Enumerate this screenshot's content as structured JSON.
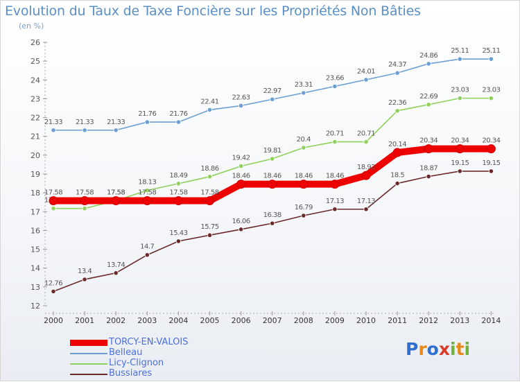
{
  "header": {
    "title": "Evolution du Taux de Taxe Foncière sur les Propriétés Non Bâties",
    "subtitle": "(en %)"
  },
  "logo": {
    "text": "Proxiti"
  },
  "chart_data": {
    "type": "line",
    "title": "Evolution du Taux de Taxe Foncière sur les Propriétés Non Bâties",
    "subtitle": "(en %)",
    "xlabel": "",
    "ylabel": "",
    "ylim": [
      12,
      26
    ],
    "y_ticks": [
      12,
      13,
      14,
      15,
      16,
      17,
      18,
      19,
      20,
      21,
      22,
      23,
      24,
      25,
      26
    ],
    "categories": [
      "2000",
      "2001",
      "2002",
      "2003",
      "2004",
      "2005",
      "2006",
      "2007",
      "2008",
      "2009",
      "2010",
      "2011",
      "2012",
      "2013",
      "2014"
    ],
    "grid": false,
    "legend_position": "bottom-left",
    "series": [
      {
        "name": "TORCY-EN-VALOIS",
        "color": "#ee0000",
        "emphasis": true,
        "values": [
          17.58,
          17.58,
          17.58,
          17.58,
          17.58,
          17.58,
          18.46,
          18.46,
          18.46,
          18.46,
          18.92,
          20.14,
          20.34,
          20.34,
          20.34
        ]
      },
      {
        "name": "Belleau",
        "color": "#6b9fd4",
        "values": [
          21.33,
          21.33,
          21.33,
          21.76,
          21.76,
          22.41,
          22.63,
          22.97,
          23.31,
          23.66,
          24.01,
          24.37,
          24.86,
          25.11,
          25.11
        ]
      },
      {
        "name": "Licy-Clignon",
        "color": "#8fd15a",
        "values": [
          17.17,
          17.17,
          17.58,
          18.13,
          18.49,
          18.86,
          19.42,
          19.81,
          20.4,
          20.71,
          20.71,
          22.36,
          22.69,
          23.03,
          23.03
        ]
      },
      {
        "name": "Bussiares",
        "color": "#6b2a2a",
        "values": [
          12.76,
          13.4,
          13.74,
          14.7,
          15.43,
          15.75,
          16.06,
          16.38,
          16.79,
          17.13,
          17.13,
          18.5,
          18.87,
          19.15,
          19.15
        ]
      }
    ]
  }
}
